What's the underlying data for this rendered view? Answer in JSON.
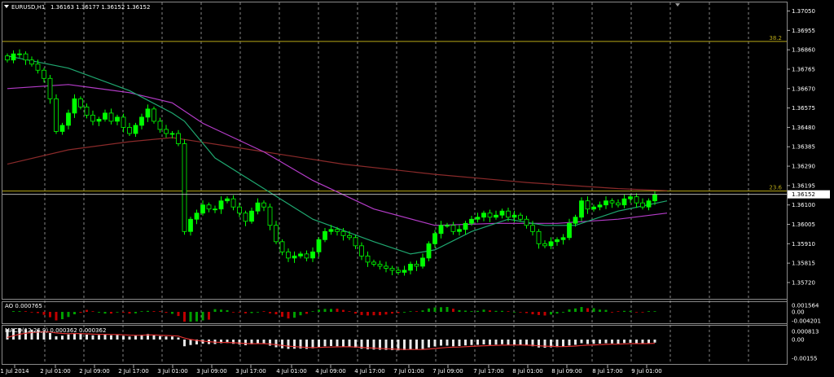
{
  "header": {
    "symbol": "EURUSD,H1",
    "ohlc": "1.36163 1.36177 1.36152 1.36152"
  },
  "price_axis": {
    "ticks": [
      "1.37050",
      "1.36955",
      "1.36860",
      "1.36765",
      "1.36670",
      "1.36575",
      "1.36480",
      "1.36385",
      "1.36290",
      "1.36195",
      "1.36100",
      "1.36005",
      "1.35910",
      "1.35815",
      "1.35720"
    ],
    "current_price": "1.36152"
  },
  "fib_levels": [
    {
      "label": "38.2",
      "price": 1.36901,
      "color": "#b8a818"
    },
    {
      "label": "23.6",
      "price": 1.36168,
      "color": "#b8a818"
    }
  ],
  "time_axis": {
    "labels": [
      "1 Jul 2014",
      "2 Jul 01:00",
      "2 Jul 09:00",
      "2 Jul 17:00",
      "3 Jul 01:00",
      "3 Jul 09:00",
      "3 Jul 17:00",
      "4 Jul 01:00",
      "4 Jul 09:00",
      "4 Jul 17:00",
      "7 Jul 01:00",
      "7 Jul 09:00",
      "7 Jul 17:00",
      "8 Jul 01:00",
      "8 Jul 09:00",
      "8 Jul 17:00",
      "9 Jul 01:00"
    ]
  },
  "ao": {
    "label": "AO 0.000765",
    "ticks": [
      "0.001564",
      "0.00",
      "-0.004201"
    ],
    "up_color": "#00a000",
    "down_color": "#c00000"
  },
  "macd": {
    "label": "MACD(12,26,9) 0.000362 0.000362",
    "ticks": [
      "0.000813",
      "0.00",
      "-0.00155"
    ]
  },
  "colors": {
    "bull": "#00ff00",
    "bear": "#000000",
    "candle_outline": "#00ff00",
    "ma_fast": "#1fa870",
    "ma_mid": "#b43cc8",
    "ma_slow": "#8a2a2a",
    "grid": "#bdbdbd",
    "fib": "#b8a818"
  },
  "chart_data": {
    "type": "candlestick",
    "title": "EURUSD,H1",
    "ylim": [
      1.3568,
      1.3708
    ],
    "close_path": [
      1.3681,
      1.3684,
      1.3684,
      1.3681,
      1.3679,
      1.3676,
      1.3672,
      1.3662,
      1.3646,
      1.3649,
      1.3655,
      1.3662,
      1.3658,
      1.3654,
      1.3651,
      1.3652,
      1.3655,
      1.3651,
      1.3653,
      1.3648,
      1.3645,
      1.3649,
      1.3653,
      1.3657,
      1.3651,
      1.3647,
      1.3645,
      1.3645,
      1.364,
      1.3597,
      1.3603,
      1.3606,
      1.361,
      1.3608,
      1.3608,
      1.3612,
      1.3613,
      1.3609,
      1.3606,
      1.3602,
      1.3607,
      1.3611,
      1.3609,
      1.36,
      1.3592,
      1.3587,
      1.3584,
      1.3585,
      1.3586,
      1.3584,
      1.3587,
      1.3593,
      1.3597,
      1.3598,
      1.3597,
      1.3595,
      1.3594,
      1.359,
      1.3585,
      1.3582,
      1.3581,
      1.358,
      1.3579,
      1.3578,
      1.3577,
      1.3578,
      1.3581,
      1.358,
      1.3584,
      1.3591,
      1.3596,
      1.36,
      1.36,
      1.3597,
      1.3598,
      1.3601,
      1.3603,
      1.3604,
      1.3606,
      1.3604,
      1.3605,
      1.3607,
      1.3604,
      1.3605,
      1.3603,
      1.36,
      1.3597,
      1.3591,
      1.359,
      1.3592,
      1.3593,
      1.3594,
      1.3601,
      1.3604,
      1.3612,
      1.3608,
      1.3609,
      1.361,
      1.3612,
      1.3611,
      1.361,
      1.3613,
      1.3614,
      1.3611,
      1.3609,
      1.3612,
      1.3615
    ],
    "ma_fast": [
      [
        0,
        1.3683
      ],
      [
        10,
        1.3677
      ],
      [
        20,
        1.3666
      ],
      [
        27,
        1.3655
      ],
      [
        29,
        1.3651
      ],
      [
        34,
        1.3633
      ],
      [
        42,
        1.3618
      ],
      [
        50,
        1.3603
      ],
      [
        60,
        1.3592
      ],
      [
        66,
        1.3586
      ],
      [
        70,
        1.3588
      ],
      [
        76,
        1.3597
      ],
      [
        82,
        1.3603
      ],
      [
        88,
        1.36
      ],
      [
        93,
        1.36
      ],
      [
        100,
        1.3607
      ],
      [
        108,
        1.3612
      ]
    ],
    "ma_mid": [
      [
        0,
        1.3667
      ],
      [
        10,
        1.3669
      ],
      [
        20,
        1.3665
      ],
      [
        27,
        1.366
      ],
      [
        32,
        1.365
      ],
      [
        42,
        1.3636
      ],
      [
        50,
        1.3622
      ],
      [
        60,
        1.3608
      ],
      [
        70,
        1.36
      ],
      [
        80,
        1.3601
      ],
      [
        90,
        1.3601
      ],
      [
        100,
        1.3603
      ],
      [
        108,
        1.3606
      ]
    ],
    "ma_slow": [
      [
        0,
        1.363
      ],
      [
        10,
        1.3637
      ],
      [
        20,
        1.3641
      ],
      [
        27,
        1.3643
      ],
      [
        40,
        1.3637
      ],
      [
        55,
        1.363
      ],
      [
        70,
        1.3625
      ],
      [
        85,
        1.3621
      ],
      [
        100,
        1.3618
      ],
      [
        108,
        1.3617
      ]
    ]
  }
}
